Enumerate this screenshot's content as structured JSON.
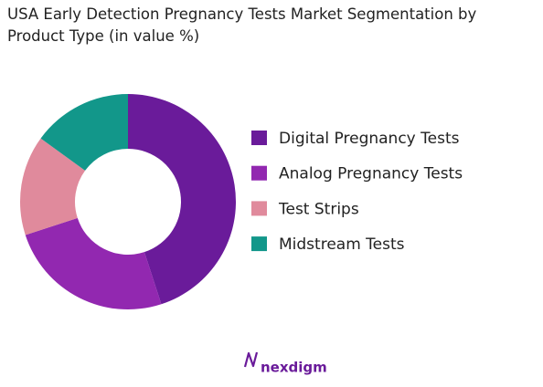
{
  "chart_data": {
    "type": "donut",
    "title": "USA Early Detection Pregnancy Tests Market Segmentation by Product Type (in value %)",
    "categories": [
      "Digital Pregnancy Tests",
      "Analog Pregnancy Tests",
      "Test Strips",
      "Midstream Tests"
    ],
    "values": [
      45,
      25,
      15,
      15
    ],
    "colors": [
      "#6a1b9a",
      "#9228b0",
      "#e08a9c",
      "#12978a"
    ],
    "legend": "right"
  },
  "logo_text": "nexdigm"
}
